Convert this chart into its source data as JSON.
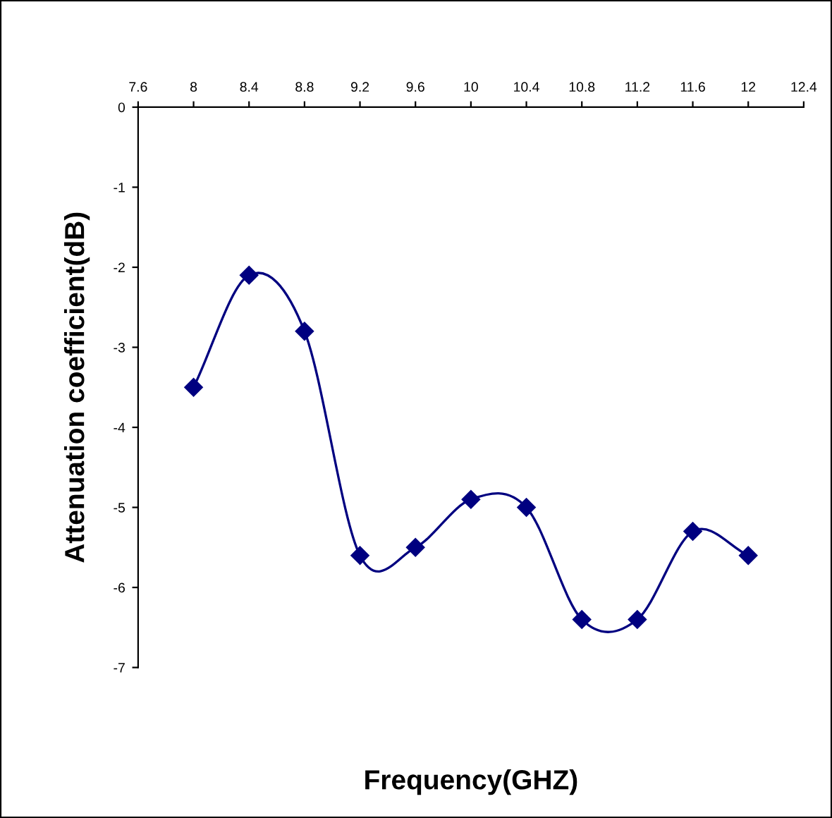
{
  "chart_data": {
    "type": "line",
    "xlabel": "Frequency(GHZ)",
    "ylabel": "Attenuation coefficient(dB)",
    "x": [
      8,
      8.4,
      8.8,
      9.2,
      9.6,
      10,
      10.4,
      10.8,
      11.2,
      11.6,
      12
    ],
    "series": [
      {
        "color": "#000080",
        "values": [
          -3.5,
          -2.1,
          -2.8,
          -5.6,
          -5.5,
          -4.9,
          -5.0,
          -6.4,
          -6.4,
          -5.3,
          -5.6
        ]
      }
    ],
    "xlim": [
      7.6,
      12.4
    ],
    "xticks": [
      7.6,
      8,
      8.4,
      8.8,
      9.2,
      9.6,
      10,
      10.4,
      10.8,
      11.2,
      11.6,
      12,
      12.4
    ],
    "ylim": [
      -7,
      0
    ],
    "yticks": [
      -7,
      -6,
      -5,
      -4,
      -3,
      -2,
      -1,
      0
    ],
    "grid": false,
    "legend": false,
    "marker": "diamond",
    "line_style": "solid"
  }
}
